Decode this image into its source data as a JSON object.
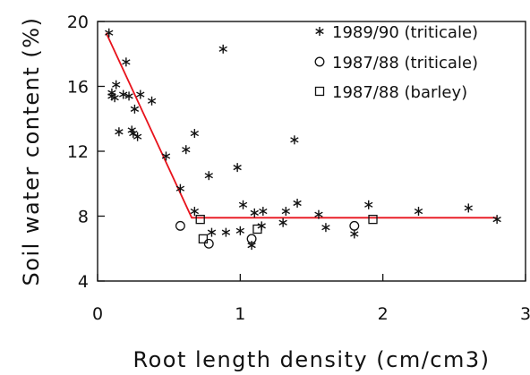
{
  "chart_data": {
    "type": "scatter",
    "xlabel": "Root length density (cm/cm3)",
    "ylabel": "Soil water content (%)",
    "xlim": [
      0,
      3
    ],
    "ylim": [
      4,
      20
    ],
    "x_ticks": [
      "0",
      "1",
      "2",
      "3"
    ],
    "y_ticks": [
      "4",
      "8",
      "12",
      "16",
      "20"
    ],
    "grid": false,
    "legend_position": "top-right",
    "series": [
      {
        "name": "1989/90 (triticale)",
        "marker": "asterisk",
        "points": [
          [
            0.08,
            19.3
          ],
          [
            0.1,
            15.6
          ],
          [
            0.1,
            15.4
          ],
          [
            0.12,
            15.3
          ],
          [
            0.13,
            16.1
          ],
          [
            0.15,
            13.2
          ],
          [
            0.18,
            15.5
          ],
          [
            0.2,
            17.5
          ],
          [
            0.22,
            15.4
          ],
          [
            0.24,
            13.3
          ],
          [
            0.25,
            13.1
          ],
          [
            0.26,
            14.6
          ],
          [
            0.28,
            12.9
          ],
          [
            0.3,
            15.5
          ],
          [
            0.38,
            15.1
          ],
          [
            0.48,
            11.7
          ],
          [
            0.58,
            9.7
          ],
          [
            0.62,
            12.1
          ],
          [
            0.68,
            8.3
          ],
          [
            0.68,
            13.1
          ],
          [
            0.78,
            10.5
          ],
          [
            0.8,
            7.0
          ],
          [
            0.88,
            18.3
          ],
          [
            0.9,
            7.0
          ],
          [
            0.98,
            11.0
          ],
          [
            1.0,
            7.1
          ],
          [
            1.02,
            8.7
          ],
          [
            1.08,
            6.2
          ],
          [
            1.1,
            8.2
          ],
          [
            1.15,
            7.4
          ],
          [
            1.16,
            8.3
          ],
          [
            1.3,
            7.6
          ],
          [
            1.32,
            8.3
          ],
          [
            1.38,
            12.7
          ],
          [
            1.4,
            8.8
          ],
          [
            1.55,
            8.1
          ],
          [
            1.6,
            7.3
          ],
          [
            1.8,
            6.9
          ],
          [
            1.9,
            8.7
          ],
          [
            2.25,
            8.3
          ],
          [
            2.6,
            8.5
          ],
          [
            2.8,
            7.8
          ]
        ]
      },
      {
        "name": "1987/88 (triticale)",
        "marker": "circle",
        "points": [
          [
            0.58,
            7.4
          ],
          [
            0.78,
            6.3
          ],
          [
            1.08,
            6.6
          ],
          [
            1.8,
            7.4
          ]
        ]
      },
      {
        "name": "1987/88 (barley)",
        "marker": "square",
        "points": [
          [
            0.72,
            7.8
          ],
          [
            0.74,
            6.6
          ],
          [
            1.12,
            7.2
          ],
          [
            1.93,
            7.8
          ]
        ]
      }
    ],
    "fit_line": {
      "color": "#e8131c",
      "points": [
        [
          0.06,
          19.3
        ],
        [
          0.66,
          7.9
        ],
        [
          2.8,
          7.9
        ]
      ]
    }
  }
}
